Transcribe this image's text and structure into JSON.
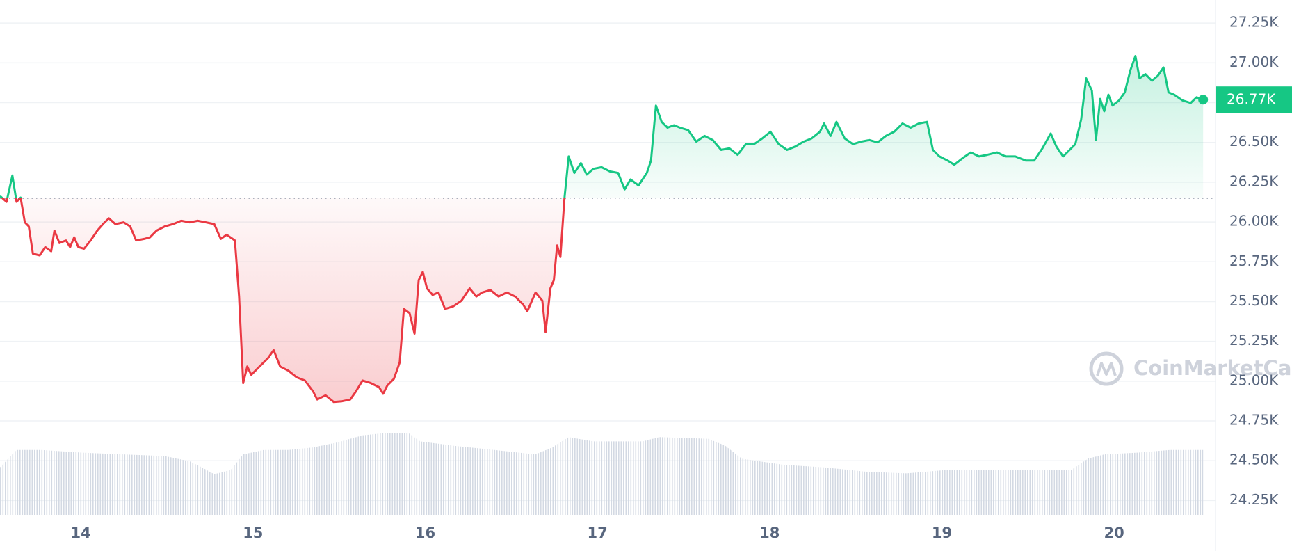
{
  "chart_data": {
    "type": "line",
    "watermark": "CoinMarketCap",
    "baseline": 26150,
    "up_color": "#16c784",
    "down_color": "#ea3943",
    "last_value_label": "26.77K",
    "xlim": [
      13.531,
      20.589
    ],
    "xticks": [
      14,
      15,
      16,
      17,
      18,
      19,
      20
    ],
    "ylim": [
      24160,
      27395
    ],
    "yticks": [
      {
        "value": 24250,
        "label": "24.25K"
      },
      {
        "value": 24500,
        "label": "24.50K"
      },
      {
        "value": 24750,
        "label": "24.75K"
      },
      {
        "value": 25000,
        "label": "25.00K"
      },
      {
        "value": 25250,
        "label": "25.25K"
      },
      {
        "value": 25500,
        "label": "25.50K"
      },
      {
        "value": 25750,
        "label": "25.75K"
      },
      {
        "value": 26000,
        "label": "26.00K"
      },
      {
        "value": 26250,
        "label": "26.25K"
      },
      {
        "value": 26500,
        "label": "26.50K"
      },
      {
        "value": 26750,
        "label": "26.75K"
      },
      {
        "value": 27000,
        "label": "27.00K"
      },
      {
        "value": 27250,
        "label": "27.25K"
      }
    ],
    "grid": true,
    "x": [
      13.531,
      13.569,
      13.603,
      13.627,
      13.651,
      13.675,
      13.698,
      13.722,
      13.761,
      13.794,
      13.828,
      13.847,
      13.876,
      13.914,
      13.938,
      13.962,
      13.986,
      14.019,
      14.057,
      14.096,
      14.129,
      14.163,
      14.201,
      14.249,
      14.287,
      14.321,
      14.368,
      14.402,
      14.44,
      14.488,
      14.536,
      14.584,
      14.632,
      14.679,
      14.727,
      14.775,
      14.813,
      14.847,
      14.895,
      14.919,
      14.943,
      14.967,
      14.99,
      15.038,
      15.086,
      15.12,
      15.158,
      15.206,
      15.254,
      15.301,
      15.349,
      15.373,
      15.421,
      15.469,
      15.517,
      15.565,
      15.598,
      15.636,
      15.684,
      15.732,
      15.756,
      15.78,
      15.818,
      15.852,
      15.876,
      15.909,
      15.938,
      15.962,
      15.986,
      16.01,
      16.043,
      16.077,
      16.115,
      16.163,
      16.211,
      16.258,
      16.297,
      16.33,
      16.378,
      16.426,
      16.474,
      16.522,
      16.57,
      16.593,
      16.641,
      16.68,
      16.699,
      16.727,
      16.747,
      16.766,
      16.785,
      16.809,
      16.833,
      16.866,
      16.904,
      16.938,
      16.976,
      17.024,
      17.072,
      17.12,
      17.158,
      17.192,
      17.239,
      17.287,
      17.311,
      17.34,
      17.373,
      17.407,
      17.445,
      17.479,
      17.527,
      17.574,
      17.622,
      17.67,
      17.718,
      17.766,
      17.814,
      17.862,
      17.909,
      17.957,
      18.005,
      18.053,
      18.101,
      18.149,
      18.197,
      18.244,
      18.292,
      18.316,
      18.354,
      18.388,
      18.436,
      18.484,
      18.531,
      18.579,
      18.627,
      18.675,
      18.723,
      18.771,
      18.819,
      18.866,
      18.914,
      18.948,
      18.986,
      19.034,
      19.072,
      19.12,
      19.168,
      19.216,
      19.263,
      19.321,
      19.369,
      19.426,
      19.488,
      19.536,
      19.584,
      19.632,
      19.665,
      19.704,
      19.742,
      19.775,
      19.809,
      19.838,
      19.871,
      19.895,
      19.919,
      19.943,
      19.967,
      19.991,
      20.029,
      20.062,
      20.095,
      20.124,
      20.148,
      20.182,
      20.22,
      20.254,
      20.287,
      20.316,
      20.349,
      20.397,
      20.445,
      20.479,
      20.517
    ],
    "series": [
      {
        "values": [
          26163,
          26127,
          26292,
          26127,
          26153,
          25998,
          25972,
          25801,
          25790,
          25842,
          25816,
          25946,
          25868,
          25884,
          25842,
          25904,
          25842,
          25832,
          25884,
          25946,
          25987,
          26023,
          25987,
          25998,
          25972,
          25884,
          25894,
          25904,
          25946,
          25972,
          25987,
          26008,
          25998,
          26008,
          25998,
          25987,
          25894,
          25920,
          25884,
          25532,
          24988,
          25092,
          25040,
          25092,
          25143,
          25195,
          25092,
          25066,
          25024,
          25004,
          24936,
          24885,
          24911,
          24869,
          24874,
          24885,
          24936,
          25004,
          24988,
          24962,
          24921,
          24973,
          25014,
          25118,
          25454,
          25428,
          25299,
          25635,
          25687,
          25583,
          25542,
          25557,
          25454,
          25470,
          25506,
          25583,
          25532,
          25557,
          25573,
          25532,
          25557,
          25532,
          25480,
          25439,
          25557,
          25506,
          25309,
          25583,
          25635,
          25853,
          25780,
          26153,
          26412,
          26308,
          26370,
          26298,
          26334,
          26344,
          26318,
          26308,
          26205,
          26267,
          26230,
          26308,
          26386,
          26732,
          26629,
          26593,
          26608,
          26593,
          26577,
          26505,
          26541,
          26515,
          26453,
          26463,
          26422,
          26489,
          26489,
          26525,
          26567,
          26489,
          26453,
          26474,
          26505,
          26525,
          26567,
          26619,
          26541,
          26629,
          26525,
          26489,
          26505,
          26515,
          26500,
          26541,
          26567,
          26619,
          26593,
          26619,
          26629,
          26453,
          26412,
          26386,
          26360,
          26401,
          26437,
          26412,
          26422,
          26437,
          26412,
          26412,
          26386,
          26386,
          26463,
          26556,
          26474,
          26412,
          26453,
          26489,
          26645,
          26903,
          26826,
          26515,
          26774,
          26696,
          26800,
          26732,
          26764,
          26815,
          26955,
          27043,
          26903,
          26929,
          26888,
          26919,
          26971,
          26815,
          26800,
          26764,
          26748,
          26784,
          26769
        ],
        "color": "#16c784"
      }
    ],
    "volume": {
      "x": [
        13.531,
        13.627,
        13.77,
        14.01,
        14.249,
        14.488,
        14.632,
        14.703,
        14.775,
        14.871,
        14.943,
        15.062,
        15.206,
        15.349,
        15.493,
        15.636,
        15.78,
        15.9,
        15.971,
        16.163,
        16.402,
        16.641,
        16.737,
        16.833,
        16.976,
        17.263,
        17.359,
        17.646,
        17.742,
        17.838,
        18.077,
        18.316,
        18.555,
        18.795,
        19.034,
        19.273,
        19.512,
        19.752,
        19.848,
        19.943,
        20.134,
        20.325,
        20.517
      ],
      "values": [
        55,
        75,
        75,
        72,
        70,
        68,
        62,
        55,
        47,
        52,
        70,
        75,
        75,
        78,
        84,
        92,
        95,
        95,
        85,
        80,
        75,
        70,
        78,
        90,
        85,
        85,
        90,
        88,
        80,
        65,
        58,
        55,
        50,
        48,
        52,
        52,
        52,
        52,
        65,
        70,
        72,
        75,
        75
      ]
    }
  }
}
